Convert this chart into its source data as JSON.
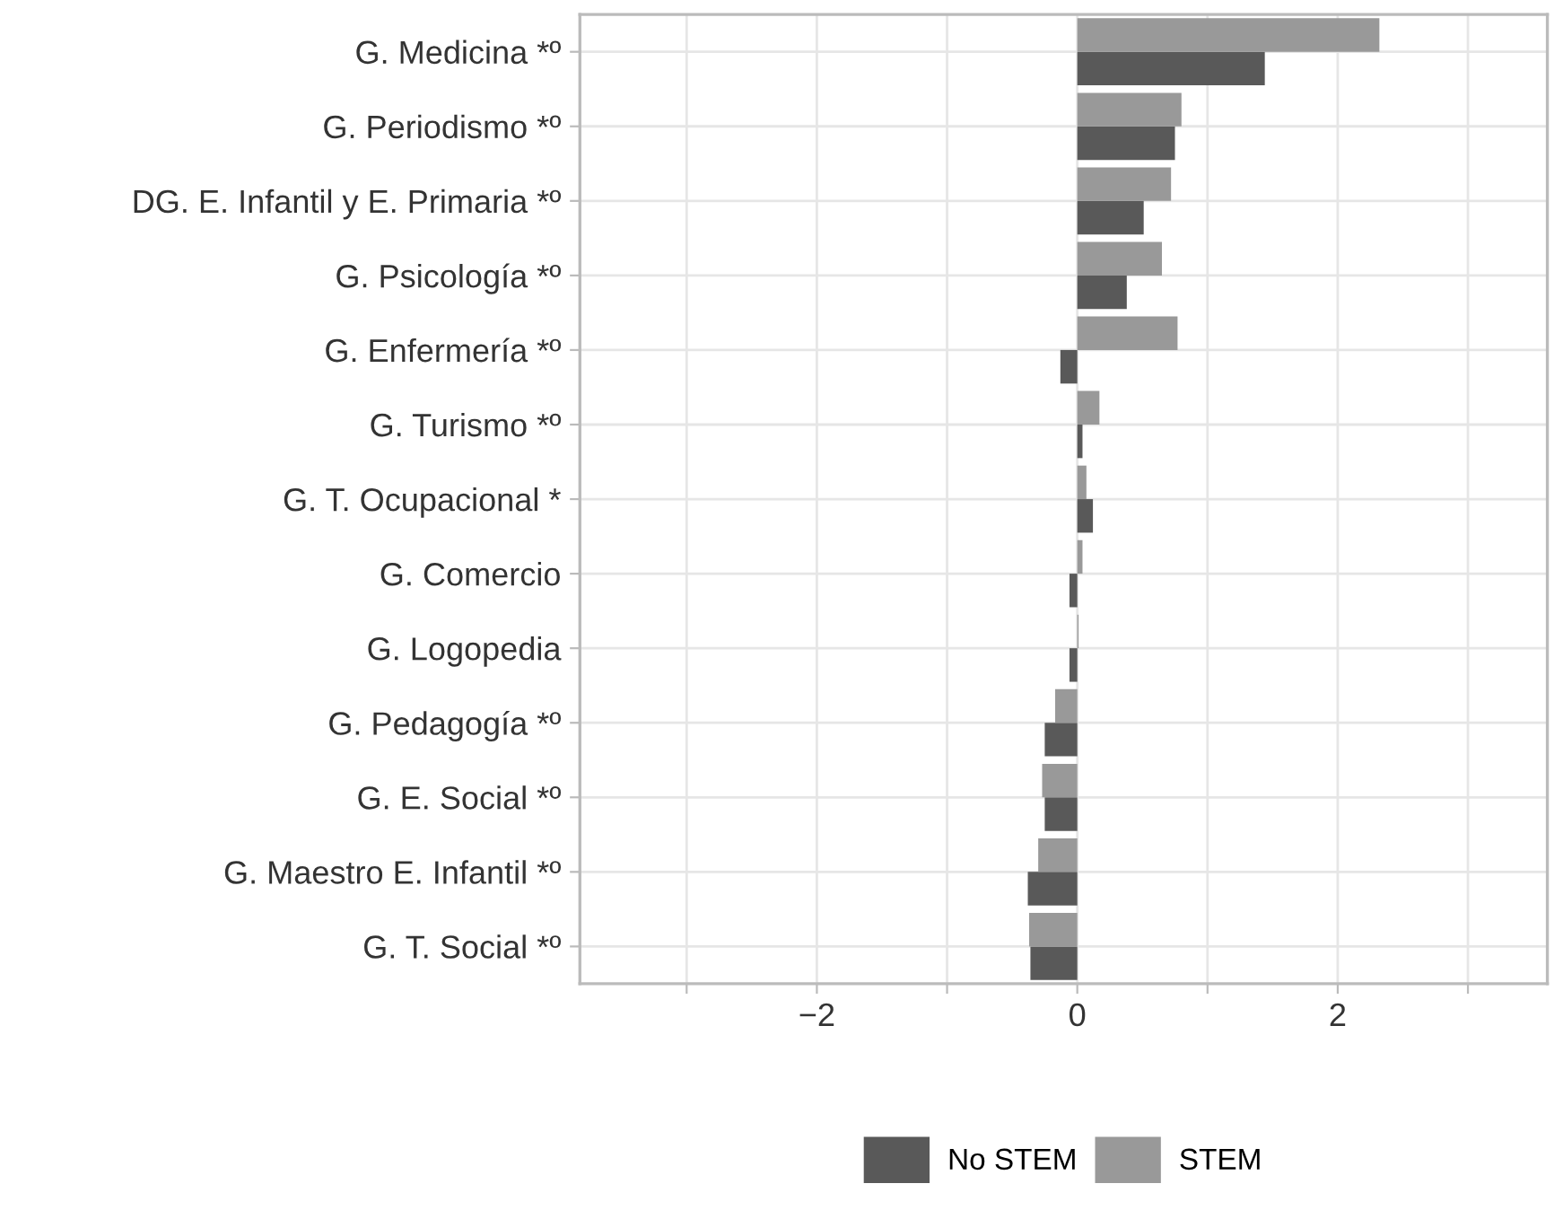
{
  "chart_data": {
    "type": "bar",
    "orientation": "horizontal",
    "categories": [
      "G. Medicina *º",
      "G. Periodismo *º",
      "DG. E. Infantil y E. Primaria *º",
      "G. Psicología *º",
      "G. Enfermería *º",
      "G. Turismo *º",
      "G. T. Ocupacional *",
      "G. Comercio",
      "G. Logopedia",
      "G. Pedagogía *º",
      "G. E. Social *º",
      "G. Maestro E. Infantil *º",
      "G. T. Social *º"
    ],
    "series": [
      {
        "name": "No STEM",
        "color": "#595959",
        "values": [
          1.44,
          0.75,
          0.51,
          0.38,
          -0.13,
          0.04,
          0.12,
          -0.06,
          -0.06,
          -0.25,
          -0.25,
          -0.38,
          -0.36
        ]
      },
      {
        "name": "STEM",
        "color": "#999999",
        "values": [
          2.32,
          0.8,
          0.72,
          0.65,
          0.77,
          0.17,
          0.07,
          0.04,
          0.01,
          -0.17,
          -0.27,
          -0.3,
          -0.37
        ]
      }
    ],
    "xlim": [
      -3.82,
      3.61
    ],
    "xticks": [
      {
        "value": -3,
        "label": null
      },
      -2,
      {
        "value": -1,
        "label": null
      },
      0,
      {
        "value": 1,
        "label": null
      },
      2,
      {
        "value": 3,
        "label": null
      }
    ],
    "grid": true,
    "legend": "bottom"
  }
}
